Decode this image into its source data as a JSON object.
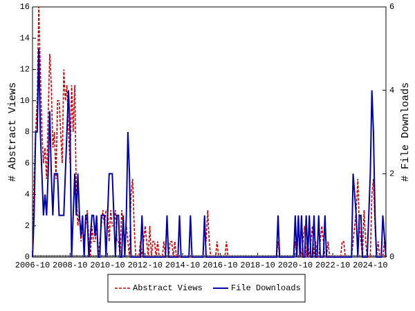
{
  "chart_data": {
    "type": "line",
    "x": [
      "2006-10",
      "2006-11",
      "2006-12",
      "2007-01",
      "2007-02",
      "2007-03",
      "2007-04",
      "2007-05",
      "2007-06",
      "2007-07",
      "2007-08",
      "2007-09",
      "2007-10",
      "2007-11",
      "2007-12",
      "2008-01",
      "2008-02",
      "2008-03",
      "2008-04",
      "2008-05",
      "2008-06",
      "2008-07",
      "2008-08",
      "2008-09",
      "2008-10",
      "2008-11",
      "2008-12",
      "2009-01",
      "2009-02",
      "2009-03",
      "2009-04",
      "2009-05",
      "2009-06",
      "2009-07",
      "2009-08",
      "2009-09",
      "2009-10",
      "2009-11",
      "2009-12",
      "2010-01",
      "2010-02",
      "2010-03",
      "2010-04",
      "2010-05",
      "2010-06",
      "2010-07",
      "2010-08",
      "2010-09",
      "2010-10",
      "2010-11",
      "2010-12",
      "2011-01",
      "2011-02",
      "2011-03",
      "2011-04",
      "2011-05",
      "2011-06",
      "2011-07",
      "2011-08",
      "2011-09",
      "2011-10",
      "2011-11",
      "2011-12",
      "2012-01",
      "2012-02",
      "2012-03",
      "2012-04",
      "2012-05",
      "2012-06",
      "2012-07",
      "2012-08",
      "2012-09",
      "2012-10",
      "2012-11",
      "2012-12",
      "2013-01",
      "2013-02",
      "2013-03",
      "2013-04",
      "2013-05",
      "2013-06",
      "2013-07",
      "2013-08",
      "2013-09",
      "2013-10",
      "2013-11",
      "2013-12",
      "2014-01",
      "2014-02",
      "2014-03",
      "2014-04",
      "2014-05",
      "2014-06",
      "2014-07",
      "2014-08",
      "2014-09",
      "2014-10",
      "2014-11",
      "2014-12",
      "2015-01",
      "2015-02",
      "2015-03",
      "2015-04",
      "2015-05",
      "2015-06",
      "2015-07",
      "2015-08",
      "2015-09",
      "2015-10",
      "2015-11",
      "2015-12",
      "2016-01",
      "2016-02",
      "2016-03",
      "2016-04",
      "2016-05",
      "2016-06",
      "2016-07",
      "2016-08",
      "2016-09",
      "2016-10",
      "2016-11",
      "2016-12",
      "2017-01",
      "2017-02",
      "2017-03",
      "2017-04",
      "2017-05",
      "2017-06",
      "2017-07",
      "2017-08",
      "2017-09",
      "2017-10",
      "2017-11",
      "2017-12",
      "2018-01",
      "2018-02",
      "2018-03",
      "2018-04",
      "2018-05",
      "2018-06",
      "2018-07",
      "2018-08",
      "2018-09",
      "2018-10",
      "2018-11",
      "2018-12",
      "2019-01",
      "2019-02",
      "2019-03",
      "2019-04",
      "2019-05",
      "2019-06",
      "2019-07",
      "2019-08",
      "2019-09",
      "2019-10",
      "2019-11",
      "2019-12",
      "2020-01",
      "2020-02",
      "2020-03",
      "2020-04",
      "2020-05",
      "2020-06",
      "2020-07",
      "2020-08",
      "2020-09",
      "2020-10",
      "2020-11",
      "2020-12",
      "2021-01",
      "2021-02",
      "2021-03",
      "2021-04",
      "2021-05",
      "2021-06",
      "2021-07",
      "2021-08",
      "2021-09",
      "2021-10",
      "2021-11",
      "2021-12",
      "2022-01",
      "2022-02",
      "2022-03",
      "2022-04",
      "2022-05",
      "2022-06",
      "2022-07",
      "2022-08",
      "2022-09",
      "2022-10",
      "2022-11",
      "2022-12",
      "2023-01",
      "2023-02",
      "2023-03",
      "2023-04",
      "2023-05",
      "2023-06",
      "2023-07",
      "2023-08",
      "2023-09",
      "2023-10",
      "2023-11",
      "2023-12",
      "2024-01",
      "2024-02",
      "2024-03",
      "2024-04",
      "2024-05",
      "2024-06",
      "2024-07",
      "2024-08",
      "2024-09",
      "2024-10",
      "2024-11",
      "2024-12",
      "2025-01",
      "2025-02",
      "2025-03",
      "2025-04",
      "2025-05",
      "2025-06",
      "2025-07",
      "2025-08"
    ],
    "xticks": [
      "2006-10",
      "2008-10",
      "2010-10",
      "2012-10",
      "2014-10",
      "2016-10",
      "2018-10",
      "2020-10",
      "2022-10",
      "2024-10"
    ],
    "ylabel": "# Abstract Views",
    "y2label": "# File Downloads",
    "ylim": [
      0,
      16
    ],
    "yticks": [
      0,
      2,
      4,
      6,
      8,
      10,
      12,
      14,
      16
    ],
    "y2lim": [
      0,
      6
    ],
    "y2ticks": [
      0,
      2,
      4,
      6
    ],
    "legend": "bottom",
    "series": [
      {
        "name": "Abstract Views",
        "color": "#cc0000",
        "dashed": true,
        "values": [
          0,
          5,
          8,
          10,
          16,
          12,
          8,
          6,
          7,
          5,
          9,
          13,
          11,
          7,
          8,
          5,
          10,
          10,
          8,
          6,
          12,
          10,
          11,
          8,
          6,
          11,
          8,
          11,
          4,
          2,
          3,
          1,
          2,
          1,
          2,
          3,
          1,
          0,
          2,
          1,
          1,
          2,
          0,
          1,
          2,
          3,
          2,
          3,
          3,
          1,
          3,
          2,
          2,
          3,
          1,
          1,
          0,
          3,
          2,
          1,
          2,
          1,
          0,
          4,
          5,
          2,
          0,
          0,
          0,
          1,
          0,
          1,
          2,
          1,
          0,
          2,
          0,
          1,
          1,
          0,
          1,
          0,
          0,
          0,
          1,
          0,
          0,
          0,
          1,
          1,
          0,
          1,
          0,
          0,
          0,
          0,
          0,
          0,
          0,
          0,
          0,
          0,
          0,
          0,
          0,
          0,
          0,
          0,
          0,
          0,
          2,
          1,
          3,
          1,
          0,
          0,
          0,
          0,
          1,
          0,
          0,
          0,
          0,
          0,
          1,
          0,
          0,
          0,
          0,
          0,
          0,
          0,
          0,
          0,
          0,
          0,
          0,
          0,
          0,
          0,
          0,
          0,
          0,
          0,
          0,
          0,
          0,
          0,
          0,
          0,
          0,
          0,
          0,
          0,
          0,
          0,
          0,
          1,
          0,
          0,
          0,
          0,
          0,
          0,
          0,
          0,
          0,
          0,
          1,
          0,
          2,
          1,
          0,
          1,
          2,
          0,
          1,
          0,
          1,
          2,
          0,
          1,
          0,
          0,
          1,
          2,
          1,
          0,
          0,
          1,
          0,
          0,
          0,
          0,
          0,
          0,
          0,
          0,
          1,
          1,
          0,
          0,
          0,
          0,
          0,
          1,
          2,
          3,
          5,
          2,
          1,
          0,
          3,
          1,
          0,
          0,
          0,
          4,
          5,
          2,
          0,
          1,
          0,
          0,
          0,
          1,
          0
        ]
      },
      {
        "name": "File Downloads",
        "color": "#0000aa",
        "dashed": false,
        "axis": "y2",
        "values": [
          0,
          1,
          3,
          3,
          5,
          3,
          2,
          1,
          1.5,
          1,
          2,
          3.5,
          2,
          1,
          2,
          2,
          2,
          1,
          1,
          1,
          1,
          2,
          3,
          4,
          3,
          0,
          1,
          2,
          1,
          2,
          1,
          0.5,
          1,
          0,
          1,
          1,
          0,
          0.5,
          1,
          1,
          0.5,
          1,
          0,
          0,
          1,
          1,
          1,
          0,
          1,
          2,
          2,
          2,
          1,
          0,
          1,
          1,
          0,
          0,
          1,
          0,
          1,
          3,
          2,
          0,
          0,
          0,
          0,
          0,
          0,
          0,
          1,
          0,
          0,
          0,
          0,
          0,
          0,
          0,
          0,
          0,
          0,
          0,
          0,
          0,
          0,
          0,
          1,
          0,
          0,
          0,
          0,
          0,
          0,
          0,
          1,
          0,
          0,
          0,
          0,
          0,
          0,
          1,
          0,
          0,
          0,
          0,
          0,
          0,
          0,
          0,
          1,
          0,
          0,
          0,
          0,
          0,
          0,
          0,
          0,
          0,
          0,
          0,
          0,
          0,
          0,
          0,
          0,
          0,
          0,
          0,
          0,
          0,
          0,
          0,
          0,
          0,
          0,
          0,
          0,
          0,
          0,
          0,
          0,
          0,
          0,
          0,
          0,
          0,
          0,
          0,
          0,
          0,
          0,
          0,
          0,
          0,
          0,
          1,
          0,
          0,
          0,
          0,
          0,
          0,
          0,
          0,
          0,
          0,
          1,
          0,
          1,
          0,
          1,
          0,
          0,
          1,
          0,
          1,
          0,
          0,
          1,
          0,
          0,
          1,
          0,
          0,
          0,
          1,
          0,
          0,
          0,
          0,
          0,
          0,
          0,
          0,
          0,
          0,
          0,
          0,
          0,
          0,
          0,
          0,
          0,
          2,
          1.5,
          1,
          0,
          1,
          1,
          0,
          0,
          0,
          0,
          1,
          2,
          4,
          3,
          1,
          0,
          0,
          0,
          0,
          1,
          0.5,
          0
        ]
      }
    ]
  }
}
